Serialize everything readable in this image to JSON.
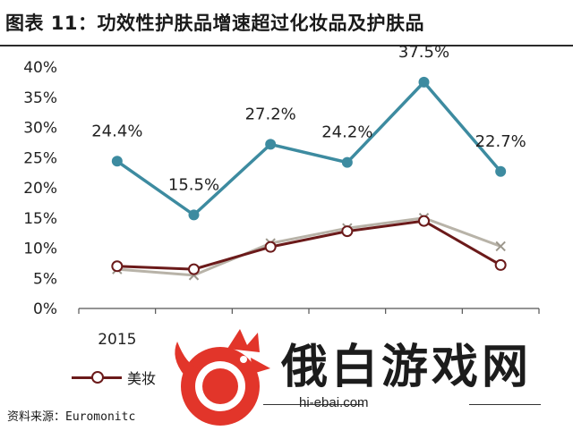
{
  "title": "图表 11：功效性护肤品增速超过化妆品及护肤品",
  "source": "资料来源：Euromonitc",
  "watermark": {
    "name": "俄白游戏网",
    "url": "hi-ebai.com"
  },
  "colors": {
    "teal": "#3d8ba0",
    "maroon": "#6b1a1a",
    "gray": "#b8b3a8",
    "axis": "#555555"
  },
  "chart_data": {
    "type": "line",
    "x": [
      "2015",
      "",
      "",
      "",
      "",
      ""
    ],
    "yticks": [
      "0%",
      "5%",
      "10%",
      "15%",
      "20%",
      "25%",
      "30%",
      "35%",
      "40%"
    ],
    "ylim": [
      0,
      40
    ],
    "grid": false,
    "legend": "bottom-left",
    "legend_entries": [
      "美妆"
    ],
    "series": [
      {
        "key": "teal",
        "values": [
          24.4,
          15.5,
          27.2,
          24.2,
          37.5,
          22.7
        ],
        "labels": [
          "24.4%",
          "15.5%",
          "27.2%",
          "24.2%",
          "37.5%",
          "22.7%"
        ],
        "marker": "circle"
      },
      {
        "key": "maroon",
        "name": "美妆",
        "values": [
          7.0,
          6.5,
          10.2,
          12.8,
          14.5,
          7.2
        ],
        "marker": "open-circle"
      },
      {
        "key": "gray",
        "values": [
          6.5,
          5.5,
          10.8,
          13.3,
          15.0,
          10.3
        ],
        "marker": "x"
      }
    ]
  }
}
